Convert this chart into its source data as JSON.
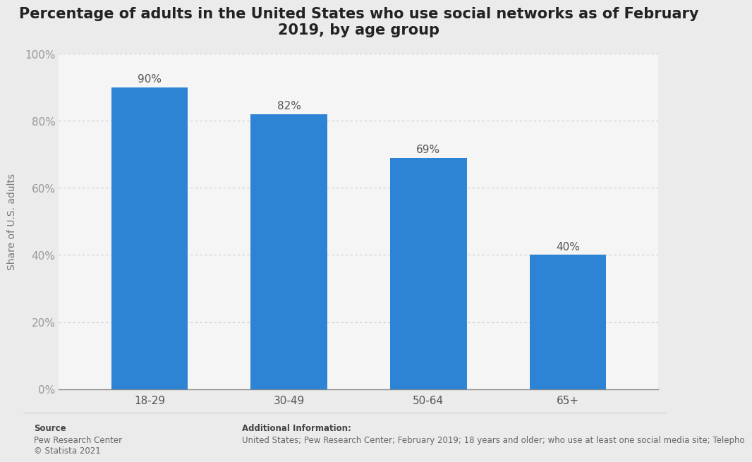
{
  "title": "Percentage of adults in the United States who use social networks as of February\n2019, by age group",
  "categories": [
    "18-29",
    "30-49",
    "50-64",
    "65+"
  ],
  "values": [
    90,
    82,
    69,
    40
  ],
  "labels": [
    "90%",
    "82%",
    "69%",
    "40%"
  ],
  "bar_color": "#2d84d4",
  "ylabel": "Share of U.S. adults",
  "ylim": [
    0,
    100
  ],
  "yticks": [
    0,
    20,
    40,
    60,
    80,
    100
  ],
  "ytick_labels": [
    "0%",
    "20%",
    "40%",
    "60%",
    "80%",
    "100%"
  ],
  "background_color": "#ebebeb",
  "plot_bg_color": "#f5f5f5",
  "right_bg_color": "#ebebeb",
  "grid_color": "#cccccc",
  "title_fontsize": 15,
  "label_fontsize": 11,
  "tick_fontsize": 11,
  "ylabel_fontsize": 10,
  "source_bold": "Source",
  "source_text": "Pew Research Center\n© Statista 2021",
  "add_info_label": "Additional Information:",
  "add_info_text": "United States; Pew Research Center; February 2019; 18 years and older; who use at least one social media site; Telepho"
}
